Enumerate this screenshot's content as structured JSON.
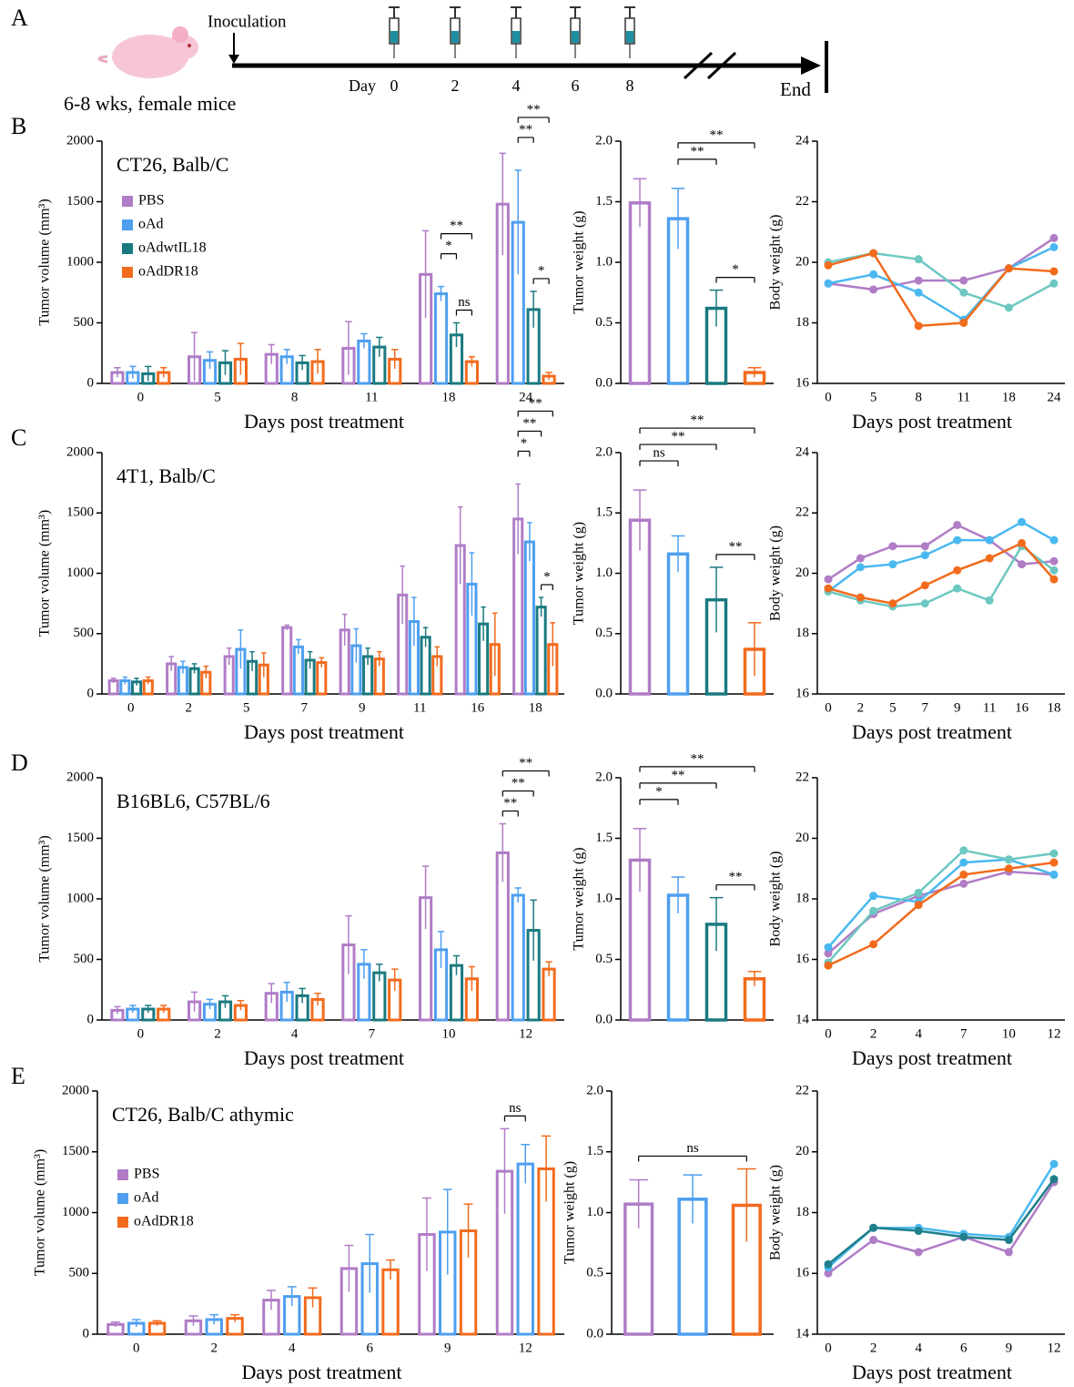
{
  "timeline": {
    "panel": "A",
    "inoculation": "Inoculation",
    "day_label": "Day",
    "days": [
      0,
      2,
      4,
      6,
      8
    ],
    "end": "End",
    "subject": "6-8 wks, female mice"
  },
  "chart_data": [
    {
      "type": "grouped_bar",
      "panel": "B",
      "title": "CT26, Balb/C",
      "ylabel": "Tumor volume (mm³)",
      "xlabel": "Days post treatment",
      "legend": true,
      "categories": [
        "0",
        "5",
        "8",
        "11",
        "18",
        "24"
      ],
      "ylim": [
        0,
        2000
      ],
      "yticks": [
        0,
        500,
        1000,
        1500,
        2000
      ],
      "series": [
        {
          "name": "PBS",
          "color": "#b07cc6",
          "values": [
            90,
            220,
            240,
            290,
            900,
            1480
          ],
          "errors": [
            40,
            200,
            80,
            220,
            360,
            420
          ]
        },
        {
          "name": "oAd",
          "color": "#4e9ff0",
          "values": [
            90,
            190,
            220,
            350,
            740,
            1330
          ],
          "errors": [
            50,
            70,
            60,
            60,
            60,
            430
          ]
        },
        {
          "name": "oAdwtIL18",
          "color": "#1a7a80",
          "values": [
            80,
            170,
            170,
            300,
            400,
            610
          ],
          "errors": [
            60,
            100,
            60,
            80,
            100,
            150
          ]
        },
        {
          "name": "oAdDR18",
          "color": "#f26b1d",
          "values": [
            90,
            200,
            180,
            200,
            180,
            60
          ],
          "errors": [
            40,
            130,
            100,
            80,
            40,
            30
          ]
        }
      ],
      "annotations": [
        {
          "label": "ns",
          "category": 4,
          "between": [
            2,
            3
          ]
        },
        {
          "label": "*",
          "category": 4,
          "between": [
            1,
            2
          ]
        },
        {
          "label": "**",
          "category": 4,
          "between": [
            1,
            3
          ]
        },
        {
          "label": "*",
          "category": 5,
          "between": [
            2,
            3
          ]
        },
        {
          "label": "**",
          "category": 5,
          "between": [
            1,
            2
          ]
        },
        {
          "label": "**",
          "category": 5,
          "between": [
            1,
            3
          ]
        }
      ]
    },
    {
      "type": "bar",
      "ylabel": "Tumor weight (g)",
      "ylim": [
        0,
        2
      ],
      "yticks": [
        {
          "value": 0,
          "label": "0.0"
        },
        0.5,
        {
          "value": 1,
          "label": "1.0"
        },
        1.5,
        {
          "value": 2,
          "label": "2.0"
        }
      ],
      "values": [
        1.49,
        1.36,
        0.62,
        0.09
      ],
      "errors": [
        0.2,
        0.25,
        0.15,
        0.04
      ],
      "colors": [
        "#b07cc6",
        "#4e9ff0",
        "#1a7a80",
        "#f26b1d"
      ],
      "annotations": [
        {
          "label": "*",
          "between": [
            2,
            3
          ]
        },
        {
          "label": "**",
          "between": [
            1,
            2
          ]
        },
        {
          "label": "**",
          "between": [
            1,
            3
          ]
        }
      ]
    },
    {
      "type": "line",
      "ylabel": "Body weight (g)",
      "xlabel": "Days post treatment",
      "categories": [
        "0",
        "5",
        "8",
        "11",
        "18",
        "24"
      ],
      "ylim": [
        16,
        24
      ],
      "yticks": [
        16,
        18,
        20,
        22,
        24
      ],
      "series": [
        {
          "color": "#b07cc6",
          "values": [
            19.3,
            19.1,
            19.4,
            19.4,
            19.8,
            20.8
          ]
        },
        {
          "color": "#4ab8f0",
          "values": [
            19.3,
            19.6,
            19.0,
            18.1,
            19.8,
            20.5
          ]
        },
        {
          "color": "#6cc8c0",
          "values": [
            20.0,
            20.3,
            20.1,
            19.0,
            18.5,
            19.3
          ]
        },
        {
          "color": "#f26b1d",
          "values": [
            19.9,
            20.3,
            17.9,
            18.0,
            19.8,
            19.7
          ]
        }
      ]
    },
    {
      "type": "grouped_bar",
      "panel": "C",
      "title": "4T1, Balb/C",
      "ylabel": "Tumor volume (mm³)",
      "xlabel": "Days post treatment",
      "legend": false,
      "categories": [
        "0",
        "2",
        "5",
        "7",
        "9",
        "11",
        "16",
        "18"
      ],
      "ylim": [
        0,
        2000
      ],
      "yticks": [
        0,
        500,
        1000,
        1500,
        2000
      ],
      "series": [
        {
          "color": "#b07cc6",
          "values": [
            110,
            250,
            310,
            550,
            530,
            820,
            1230,
            1450
          ],
          "errors": [
            20,
            60,
            70,
            20,
            130,
            240,
            320,
            290
          ]
        },
        {
          "color": "#4e9ff0",
          "values": [
            110,
            220,
            370,
            390,
            400,
            600,
            910,
            1260
          ],
          "errors": [
            30,
            50,
            160,
            60,
            140,
            200,
            260,
            160
          ]
        },
        {
          "color": "#1a7a80",
          "values": [
            100,
            210,
            270,
            280,
            310,
            470,
            580,
            720
          ],
          "errors": [
            30,
            40,
            80,
            70,
            70,
            80,
            140,
            80
          ]
        },
        {
          "color": "#f26b1d",
          "values": [
            110,
            180,
            240,
            260,
            290,
            310,
            410,
            410
          ],
          "errors": [
            30,
            50,
            100,
            40,
            60,
            80,
            260,
            180
          ]
        }
      ],
      "annotations": [
        {
          "label": "*",
          "category": 7,
          "between": [
            2,
            3
          ]
        },
        {
          "label": "*",
          "category": 7,
          "between": [
            0,
            1
          ]
        },
        {
          "label": "**",
          "category": 7,
          "between": [
            0,
            2
          ]
        },
        {
          "label": "**",
          "category": 7,
          "between": [
            0,
            3
          ]
        }
      ]
    },
    {
      "type": "bar",
      "ylabel": "Tumor weight (g)",
      "ylim": [
        0,
        2
      ],
      "yticks": [
        {
          "value": 0,
          "label": "0.0"
        },
        0.5,
        {
          "value": 1,
          "label": "1.0"
        },
        1.5,
        {
          "value": 2,
          "label": "2.0"
        }
      ],
      "values": [
        1.44,
        1.16,
        0.78,
        0.37
      ],
      "errors": [
        0.25,
        0.15,
        0.27,
        0.22
      ],
      "colors": [
        "#b07cc6",
        "#4e9ff0",
        "#1a7a80",
        "#f26b1d"
      ],
      "annotations": [
        {
          "label": "**",
          "between": [
            2,
            3
          ]
        },
        {
          "label": "ns",
          "between": [
            0,
            1
          ]
        },
        {
          "label": "**",
          "between": [
            0,
            2
          ]
        },
        {
          "label": "**",
          "between": [
            0,
            3
          ]
        }
      ]
    },
    {
      "type": "line",
      "ylabel": "Body weight (g)",
      "xlabel": "Days post treatment",
      "categories": [
        "0",
        "2",
        "5",
        "7",
        "9",
        "11",
        "16",
        "18"
      ],
      "ylim": [
        16,
        24
      ],
      "yticks": [
        16,
        18,
        20,
        22,
        24
      ],
      "series": [
        {
          "color": "#b07cc6",
          "values": [
            19.8,
            20.5,
            20.9,
            20.9,
            21.6,
            21.1,
            20.3,
            20.4
          ]
        },
        {
          "color": "#4ab8f0",
          "values": [
            19.4,
            20.2,
            20.3,
            20.6,
            21.1,
            21.1,
            21.7,
            21.1
          ]
        },
        {
          "color": "#6cc8c0",
          "values": [
            19.4,
            19.1,
            18.9,
            19.0,
            19.5,
            19.1,
            20.9,
            20.1
          ]
        },
        {
          "color": "#f26b1d",
          "values": [
            19.5,
            19.2,
            19.0,
            19.6,
            20.1,
            20.5,
            21.0,
            19.8
          ]
        }
      ]
    },
    {
      "type": "grouped_bar",
      "panel": "D",
      "title": "B16BL6, C57BL/6",
      "ylabel": "Tumor volume (mm³)",
      "xlabel": "Days post treatment",
      "legend": false,
      "categories": [
        "0",
        "2",
        "4",
        "7",
        "10",
        "12"
      ],
      "ylim": [
        0,
        2000
      ],
      "yticks": [
        0,
        500,
        1000,
        1500,
        2000
      ],
      "series": [
        {
          "color": "#b07cc6",
          "values": [
            80,
            150,
            220,
            620,
            1010,
            1380
          ],
          "errors": [
            30,
            80,
            80,
            240,
            260,
            240
          ]
        },
        {
          "color": "#4e9ff0",
          "values": [
            90,
            130,
            230,
            460,
            580,
            1030
          ],
          "errors": [
            30,
            40,
            80,
            120,
            150,
            60
          ]
        },
        {
          "color": "#1a7a80",
          "values": [
            90,
            150,
            200,
            390,
            450,
            740
          ],
          "errors": [
            30,
            50,
            60,
            70,
            80,
            250
          ]
        },
        {
          "color": "#f26b1d",
          "values": [
            90,
            120,
            170,
            330,
            340,
            420
          ],
          "errors": [
            30,
            40,
            50,
            90,
            100,
            60
          ]
        }
      ],
      "annotations": [
        {
          "label": "**",
          "category": 5,
          "between": [
            0,
            1
          ]
        },
        {
          "label": "**",
          "category": 5,
          "between": [
            0,
            2
          ]
        },
        {
          "label": "**",
          "category": 5,
          "between": [
            0,
            3
          ]
        }
      ]
    },
    {
      "type": "bar",
      "ylabel": "Tumor weight (g)",
      "ylim": [
        0,
        2
      ],
      "yticks": [
        {
          "value": 0,
          "label": "0.0"
        },
        0.5,
        {
          "value": 1,
          "label": "1.0"
        },
        1.5,
        {
          "value": 2,
          "label": "2.0"
        }
      ],
      "values": [
        1.32,
        1.03,
        0.79,
        0.34
      ],
      "errors": [
        0.26,
        0.15,
        0.22,
        0.06
      ],
      "colors": [
        "#b07cc6",
        "#4e9ff0",
        "#1a7a80",
        "#f26b1d"
      ],
      "annotations": [
        {
          "label": "**",
          "between": [
            2,
            3
          ]
        },
        {
          "label": "*",
          "between": [
            0,
            1
          ]
        },
        {
          "label": "**",
          "between": [
            0,
            2
          ]
        },
        {
          "label": "**",
          "between": [
            0,
            3
          ]
        }
      ]
    },
    {
      "type": "line",
      "ylabel": "Body weight (g)",
      "xlabel": "Days post treatment",
      "categories": [
        "0",
        "2",
        "4",
        "7",
        "10",
        "12"
      ],
      "ylim": [
        14,
        22
      ],
      "yticks": [
        14,
        16,
        18,
        20,
        22
      ],
      "series": [
        {
          "color": "#b07cc6",
          "values": [
            16.2,
            17.5,
            18.1,
            18.5,
            18.9,
            18.8
          ]
        },
        {
          "color": "#4ab8f0",
          "values": [
            16.4,
            18.1,
            17.9,
            19.2,
            19.3,
            18.8
          ]
        },
        {
          "color": "#6cc8c0",
          "values": [
            15.9,
            17.6,
            18.2,
            19.6,
            19.3,
            19.5
          ]
        },
        {
          "color": "#f26b1d",
          "values": [
            15.8,
            16.5,
            17.8,
            18.8,
            19.0,
            19.2
          ]
        }
      ]
    },
    {
      "type": "grouped_bar",
      "panel": "E",
      "title": "CT26, Balb/C athymic",
      "ylabel": "Tumor volume (mm³)",
      "xlabel": "Days post treatment",
      "legend": true,
      "categories": [
        "0",
        "2",
        "4",
        "6",
        "9",
        "12"
      ],
      "ylim": [
        0,
        2000
      ],
      "yticks": [
        0,
        500,
        1000,
        1500,
        2000
      ],
      "series": [
        {
          "name": "PBS",
          "color": "#b07cc6",
          "values": [
            80,
            110,
            280,
            540,
            820,
            1340
          ],
          "errors": [
            20,
            40,
            80,
            190,
            300,
            350
          ]
        },
        {
          "name": "oAd",
          "color": "#4e9ff0",
          "values": [
            90,
            120,
            310,
            580,
            840,
            1400
          ],
          "errors": [
            30,
            40,
            80,
            240,
            350,
            160
          ]
        },
        {
          "name": "oAdDR18",
          "color": "#f26b1d",
          "values": [
            90,
            130,
            300,
            530,
            850,
            1360
          ],
          "errors": [
            20,
            30,
            80,
            80,
            220,
            270
          ]
        }
      ],
      "annotations": [
        {
          "label": "ns",
          "category": 5,
          "between": [
            0,
            1
          ]
        }
      ]
    },
    {
      "type": "bar",
      "ylabel": "Tumor weight (g)",
      "ylim": [
        0,
        2
      ],
      "yticks": [
        {
          "value": 0,
          "label": "0.0"
        },
        0.5,
        {
          "value": 1,
          "label": "1.0"
        },
        1.5,
        {
          "value": 2,
          "label": "2.0"
        }
      ],
      "values": [
        1.07,
        1.11,
        1.06
      ],
      "errors": [
        0.2,
        0.2,
        0.3
      ],
      "colors": [
        "#b07cc6",
        "#4e9ff0",
        "#f26b1d"
      ],
      "annotations": [
        {
          "label": "ns",
          "between": [
            0,
            2
          ]
        }
      ]
    },
    {
      "type": "line",
      "ylabel": "Body weight (g)",
      "xlabel": "Days post treatment",
      "categories": [
        "0",
        "2",
        "4",
        "6",
        "9",
        "12"
      ],
      "ylim": [
        14,
        22
      ],
      "yticks": [
        14,
        16,
        18,
        20,
        22
      ],
      "series": [
        {
          "color": "#b07cc6",
          "values": [
            16.0,
            17.1,
            16.7,
            17.2,
            16.7,
            19.0
          ]
        },
        {
          "color": "#4ab8f0",
          "values": [
            16.2,
            17.5,
            17.5,
            17.3,
            17.2,
            19.6
          ]
        },
        {
          "color": "#1f7f8a",
          "values": [
            16.3,
            17.5,
            17.4,
            17.2,
            17.1,
            19.1
          ]
        }
      ]
    }
  ]
}
